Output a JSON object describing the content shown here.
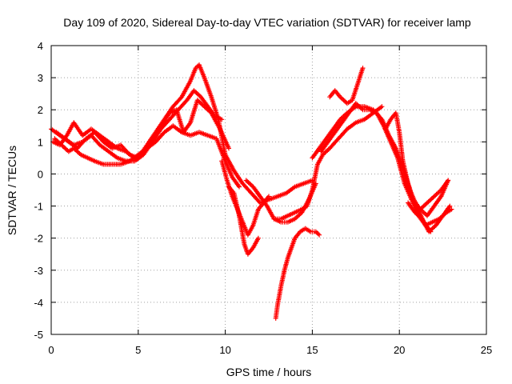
{
  "chart_data": {
    "type": "scatter",
    "title": "Day 109 of 2020, Sidereal Day-to-day VTEC variation (SDTVAR) for receiver lamp",
    "xlabel": "GPS time / hours",
    "ylabel": "SDTVAR / TECUs",
    "xlim": [
      0,
      25
    ],
    "ylim": [
      -5,
      4
    ],
    "xticks": [
      "0",
      "5",
      "10",
      "15",
      "20",
      "25"
    ],
    "yticks": [
      "-5",
      "-4",
      "-3",
      "-2",
      "-1",
      "0",
      "1",
      "2",
      "3",
      "4"
    ],
    "grid": true,
    "marker": "+",
    "color": "#ff0000",
    "series": [
      {
        "x": [
          0,
          0.5,
          1,
          1.5,
          2,
          2.5,
          3,
          3.5,
          4,
          4.5,
          5,
          5.5,
          6,
          6.5,
          7,
          7.5,
          8,
          8.3,
          8.5,
          8.8,
          9.2,
          9.6,
          10,
          10.5,
          11,
          11.5,
          12,
          12.5,
          13,
          13.5,
          14,
          14.5,
          15
        ],
        "y": [
          1.4,
          1.2,
          1.0,
          0.8,
          1.1,
          1.3,
          1.0,
          0.8,
          0.9,
          0.6,
          0.5,
          0.9,
          1.3,
          1.7,
          2.1,
          2.4,
          2.9,
          3.3,
          3.4,
          3.0,
          2.4,
          1.7,
          0.6,
          0.1,
          -0.3,
          -0.6,
          -0.9,
          -0.8,
          -0.7,
          -0.6,
          -0.4,
          -0.3,
          -0.2
        ]
      },
      {
        "x": [
          0.2,
          0.6,
          1,
          1.3,
          1.7,
          2.1,
          2.5,
          3,
          3.5,
          4,
          4.5,
          5,
          5.5,
          6,
          6.5,
          7,
          7.5,
          8,
          8.5,
          9,
          9.5,
          10,
          10.4,
          10.8
        ],
        "y": [
          1.1,
          0.9,
          0.7,
          0.8,
          0.6,
          0.5,
          0.4,
          0.3,
          0.3,
          0.3,
          0.4,
          0.6,
          0.8,
          1.0,
          1.3,
          1.5,
          1.3,
          1.2,
          1.3,
          1.2,
          1.1,
          0.4,
          -0.1,
          -0.4
        ]
      },
      {
        "x": [
          0.1,
          0.5,
          0.9,
          1.3,
          1.8,
          2.3,
          2.8,
          3.3,
          3.8,
          4.3,
          4.8,
          5.3,
          5.8,
          6.3,
          6.8,
          7.2,
          7.6,
          8,
          8.4,
          8.8,
          9.2,
          9.7,
          10.2
        ],
        "y": [
          1.0,
          0.9,
          1.2,
          1.6,
          1.2,
          1.4,
          1.2,
          1.0,
          0.8,
          0.7,
          0.5,
          0.7,
          1.0,
          1.5,
          1.9,
          2.0,
          1.3,
          1.6,
          2.3,
          2.1,
          1.9,
          1.4,
          0.8
        ]
      },
      {
        "x": [
          0.3,
          0.8,
          1.3,
          1.8,
          2.3,
          2.8,
          3.3,
          3.8,
          4.3,
          4.8,
          5.3,
          5.8,
          6.3,
          6.8,
          7.3,
          7.8,
          8.2,
          8.6,
          9,
          9.4,
          9.8
        ],
        "y": [
          1.3,
          1.1,
          0.9,
          1.0,
          1.2,
          0.9,
          0.7,
          0.5,
          0.4,
          0.4,
          0.6,
          1.0,
          1.4,
          1.7,
          2.0,
          2.3,
          2.6,
          2.4,
          2.1,
          1.8,
          1.7
        ]
      },
      {
        "x": [
          9.8,
          10.1,
          10.4,
          10.7,
          11,
          11.3,
          11.6,
          11.9,
          12.2,
          12.5
        ],
        "y": [
          0.4,
          -0.2,
          -0.7,
          -1.1,
          -1.5,
          -1.9,
          -1.6,
          -1.1,
          -0.9,
          -0.7
        ]
      },
      {
        "x": [
          10.2,
          10.5,
          10.8,
          11.1,
          11.3,
          11.6,
          11.9
        ],
        "y": [
          -0.4,
          -0.6,
          -1.3,
          -2.2,
          -2.5,
          -2.3,
          -2.0
        ]
      },
      {
        "x": [
          11.2,
          11.6,
          12,
          12.4,
          12.8,
          13.2,
          13.6,
          14,
          14.4,
          14.8,
          15.2
        ],
        "y": [
          -0.2,
          -0.4,
          -0.7,
          -1.0,
          -1.4,
          -1.5,
          -1.5,
          -1.4,
          -1.2,
          -0.8,
          -0.3
        ]
      },
      {
        "x": [
          12.9,
          13,
          13.2,
          13.4,
          13.6,
          13.8,
          14,
          14.3,
          14.6,
          14.9,
          15.2,
          15.4
        ],
        "y": [
          -4.5,
          -4.1,
          -3.5,
          -3.0,
          -2.6,
          -2.3,
          -2.0,
          -1.8,
          -1.7,
          -1.8,
          -1.8,
          -1.9
        ]
      },
      {
        "x": [
          12.8,
          13.2,
          13.6,
          14,
          14.4,
          14.7,
          15,
          15.3,
          15.6,
          16,
          16.5,
          17,
          17.5,
          18,
          18.5,
          19
        ],
        "y": [
          -1.4,
          -1.4,
          -1.3,
          -1.2,
          -1.1,
          -1.0,
          -0.5,
          0.3,
          0.6,
          0.8,
          1.1,
          1.4,
          1.6,
          1.7,
          1.9,
          2.1
        ]
      },
      {
        "x": [
          15,
          15.4,
          15.8,
          16.2,
          16.6,
          17,
          17.5,
          18,
          18.5,
          19,
          19.4,
          19.8,
          20.2,
          20.6,
          21,
          21.4,
          21.8
        ],
        "y": [
          0.5,
          0.8,
          1.1,
          1.4,
          1.7,
          1.9,
          2.1,
          2.1,
          2.0,
          1.7,
          1.2,
          0.8,
          0.2,
          -0.5,
          -1.0,
          -1.5,
          -1.8
        ]
      },
      {
        "x": [
          15.5,
          15.9,
          16.3,
          16.7,
          17.1,
          17.5,
          17.9,
          18.3,
          18.7,
          19.1,
          19.5,
          19.9,
          20.3,
          20.7,
          21.1,
          21.5,
          21.9,
          22.3,
          22.7,
          23
        ],
        "y": [
          0.7,
          1.0,
          1.3,
          1.6,
          1.9,
          2.2,
          2.0,
          2.0,
          1.9,
          1.5,
          1.0,
          0.5,
          -0.3,
          -0.8,
          -1.3,
          -1.6,
          -1.5,
          -1.4,
          -1.2,
          -1.1
        ]
      },
      {
        "x": [
          16,
          16.3,
          16.6,
          17,
          17.3,
          17.6,
          17.9
        ],
        "y": [
          2.4,
          2.6,
          2.4,
          2.2,
          2.3,
          2.8,
          3.3
        ]
      },
      {
        "x": [
          19.2,
          19.5,
          19.8,
          20,
          20.2,
          20.5,
          20.8,
          21.2,
          21.6,
          22,
          22.4,
          22.8
        ],
        "y": [
          1.4,
          1.7,
          1.9,
          1.3,
          0.4,
          -0.3,
          -0.8,
          -1.1,
          -1.3,
          -1.0,
          -0.7,
          -0.2
        ]
      },
      {
        "x": [
          20.5,
          20.9,
          21.3,
          21.7,
          22.1,
          22.5,
          22.9
        ],
        "y": [
          -0.9,
          -1.2,
          -1.4,
          -1.8,
          -1.6,
          -1.3,
          -1.0
        ]
      },
      {
        "x": [
          21.2,
          21.6,
          22,
          22.4,
          22.8
        ],
        "y": [
          -1.1,
          -0.9,
          -0.7,
          -0.5,
          -0.2
        ]
      }
    ]
  }
}
